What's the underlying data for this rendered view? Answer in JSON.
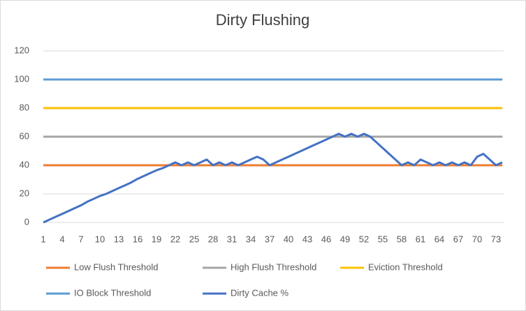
{
  "chart_data": {
    "type": "line",
    "title": "Dirty Flushing",
    "categories": [
      1,
      null,
      null,
      4,
      null,
      null,
      7,
      null,
      null,
      10,
      null,
      null,
      13,
      null,
      null,
      16,
      null,
      null,
      19,
      null,
      null,
      22,
      null,
      null,
      25,
      null,
      null,
      28,
      null,
      null,
      31,
      null,
      null,
      34,
      null,
      null,
      37,
      null,
      null,
      40,
      null,
      null,
      43,
      null,
      null,
      46,
      null,
      null,
      49,
      null,
      null,
      52,
      null,
      null,
      55,
      null,
      null,
      58,
      null,
      null,
      61,
      null,
      null,
      64,
      null,
      null,
      67,
      null,
      null,
      70,
      null,
      null,
      73,
      null
    ],
    "series": [
      {
        "name": "Low Flush Threshold",
        "color": "#ed7d31",
        "values": [
          40,
          40,
          40,
          40,
          40,
          40,
          40,
          40,
          40,
          40,
          40,
          40,
          40,
          40,
          40,
          40,
          40,
          40,
          40,
          40,
          40,
          40,
          40,
          40,
          40,
          40,
          40,
          40,
          40,
          40,
          40,
          40,
          40,
          40,
          40,
          40,
          40,
          40,
          40,
          40,
          40,
          40,
          40,
          40,
          40,
          40,
          40,
          40,
          40,
          40,
          40,
          40,
          40,
          40,
          40,
          40,
          40,
          40,
          40,
          40,
          40,
          40,
          40,
          40,
          40,
          40,
          40,
          40,
          40,
          40,
          40,
          40,
          40,
          40
        ]
      },
      {
        "name": "High Flush Threshold",
        "color": "#a5a5a5",
        "values": [
          60,
          60,
          60,
          60,
          60,
          60,
          60,
          60,
          60,
          60,
          60,
          60,
          60,
          60,
          60,
          60,
          60,
          60,
          60,
          60,
          60,
          60,
          60,
          60,
          60,
          60,
          60,
          60,
          60,
          60,
          60,
          60,
          60,
          60,
          60,
          60,
          60,
          60,
          60,
          60,
          60,
          60,
          60,
          60,
          60,
          60,
          60,
          60,
          60,
          60,
          60,
          60,
          60,
          60,
          60,
          60,
          60,
          60,
          60,
          60,
          60,
          60,
          60,
          60,
          60,
          60,
          60,
          60,
          60,
          60,
          60,
          60,
          60,
          60
        ]
      },
      {
        "name": "Eviction Threshold",
        "color": "#ffc000",
        "values": [
          80,
          80,
          80,
          80,
          80,
          80,
          80,
          80,
          80,
          80,
          80,
          80,
          80,
          80,
          80,
          80,
          80,
          80,
          80,
          80,
          80,
          80,
          80,
          80,
          80,
          80,
          80,
          80,
          80,
          80,
          80,
          80,
          80,
          80,
          80,
          80,
          80,
          80,
          80,
          80,
          80,
          80,
          80,
          80,
          80,
          80,
          80,
          80,
          80,
          80,
          80,
          80,
          80,
          80,
          80,
          80,
          80,
          80,
          80,
          80,
          80,
          80,
          80,
          80,
          80,
          80,
          80,
          80,
          80,
          80,
          80,
          80,
          80,
          80
        ]
      },
      {
        "name": "IO Block Threshold",
        "color": "#5b9bd5",
        "values": [
          100,
          100,
          100,
          100,
          100,
          100,
          100,
          100,
          100,
          100,
          100,
          100,
          100,
          100,
          100,
          100,
          100,
          100,
          100,
          100,
          100,
          100,
          100,
          100,
          100,
          100,
          100,
          100,
          100,
          100,
          100,
          100,
          100,
          100,
          100,
          100,
          100,
          100,
          100,
          100,
          100,
          100,
          100,
          100,
          100,
          100,
          100,
          100,
          100,
          100,
          100,
          100,
          100,
          100,
          100,
          100,
          100,
          100,
          100,
          100,
          100,
          100,
          100,
          100,
          100,
          100,
          100,
          100,
          100,
          100,
          100,
          100,
          100,
          100
        ]
      },
      {
        "name": "Dirty Cache %",
        "color": "#4472c4",
        "values": [
          0,
          2,
          4,
          6,
          8,
          10,
          12,
          14.5,
          16.5,
          18.5,
          20,
          22,
          24,
          26,
          28,
          30.5,
          32.5,
          34.5,
          36.5,
          38,
          40,
          42,
          40,
          42,
          40,
          42,
          44,
          40,
          42,
          40,
          42,
          40,
          42,
          44,
          46,
          44,
          40,
          42,
          44,
          46,
          48,
          50,
          52,
          54,
          56,
          58,
          60,
          62,
          60,
          62,
          60,
          62,
          60,
          56,
          52,
          48,
          44,
          40,
          42,
          40,
          44,
          42,
          40,
          42,
          40,
          42,
          40,
          42,
          40,
          46,
          48,
          44,
          40,
          42
        ]
      }
    ],
    "ylim": [
      0,
      120
    ],
    "yticks": [
      0,
      20,
      40,
      60,
      80,
      100,
      120
    ],
    "grid": true,
    "legend": "bottom"
  }
}
